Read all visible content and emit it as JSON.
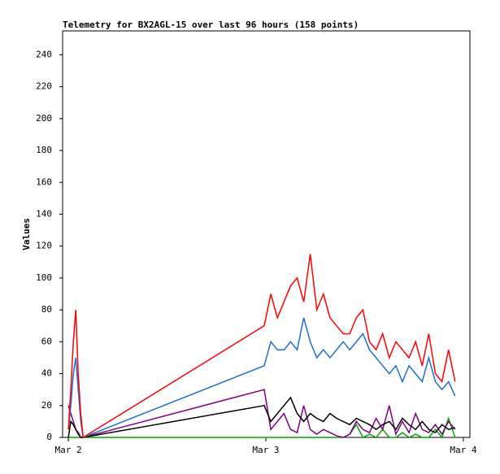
{
  "chart_data": {
    "type": "line",
    "title": "Telemetry for BX2AGL-15 over last 96 hours (158 points)",
    "ylabel": "Values",
    "x": [
      0,
      0.3,
      0.6,
      0.9,
      1.2,
      1.5,
      1.8,
      23.8,
      24.6,
      25.4,
      26.2,
      27.0,
      27.8,
      28.6,
      29.4,
      30.2,
      31.0,
      31.8,
      32.6,
      33.4,
      34.2,
      35.0,
      35.8,
      36.6,
      37.4,
      38.2,
      39.0,
      39.8,
      40.6,
      41.4,
      42.2,
      43.0,
      43.8,
      44.6,
      45.4,
      46.2,
      47.0
    ],
    "xlim": [
      -0.7,
      48.8
    ],
    "xticks": [
      {
        "value": 0,
        "label": "Mar 2"
      },
      {
        "value": 24,
        "label": "Mar 3"
      },
      {
        "value": 48,
        "label": "Mar 4"
      }
    ],
    "ylim": [
      0,
      255
    ],
    "yticks": [
      0,
      20,
      40,
      60,
      80,
      100,
      120,
      140,
      160,
      180,
      200,
      220,
      240
    ],
    "grid": false,
    "series": [
      {
        "color": "#ff0000",
        "values": [
          5,
          30,
          60,
          80,
          40,
          15,
          0,
          70,
          90,
          75,
          85,
          95,
          100,
          85,
          115,
          80,
          90,
          75,
          70,
          65,
          65,
          75,
          80,
          60,
          55,
          65,
          50,
          60,
          55,
          50,
          60,
          45,
          65,
          40,
          35,
          55,
          35
        ]
      },
      {
        "color": "#1c6fcf",
        "values": [
          5,
          20,
          40,
          50,
          30,
          10,
          0,
          45,
          60,
          55,
          55,
          60,
          55,
          75,
          60,
          50,
          55,
          50,
          55,
          60,
          55,
          60,
          65,
          55,
          50,
          45,
          40,
          45,
          35,
          45,
          40,
          35,
          50,
          35,
          30,
          35,
          26
        ]
      },
      {
        "color": "#000000",
        "values": [
          0,
          10,
          8,
          5,
          3,
          0,
          0,
          20,
          10,
          15,
          20,
          25,
          15,
          10,
          15,
          12,
          10,
          15,
          12,
          10,
          8,
          12,
          10,
          8,
          5,
          8,
          10,
          5,
          12,
          8,
          5,
          10,
          5,
          3,
          8,
          5,
          6
        ]
      },
      {
        "color": "#800080",
        "values": [
          20,
          15,
          10,
          5,
          2,
          0,
          0,
          30,
          5,
          10,
          15,
          5,
          3,
          20,
          5,
          2,
          5,
          3,
          1,
          0,
          2,
          10,
          5,
          3,
          12,
          5,
          20,
          2,
          10,
          3,
          15,
          5,
          3,
          8,
          2,
          10,
          5
        ]
      },
      {
        "color": "#00aa00",
        "values": [
          0,
          0,
          0,
          0,
          0,
          0,
          0,
          0,
          0,
          0,
          0,
          0,
          0,
          0,
          0,
          0,
          0,
          0,
          0,
          0,
          2,
          8,
          0,
          2,
          0,
          5,
          0,
          0,
          3,
          0,
          2,
          0,
          0,
          5,
          0,
          12,
          0
        ]
      }
    ]
  }
}
